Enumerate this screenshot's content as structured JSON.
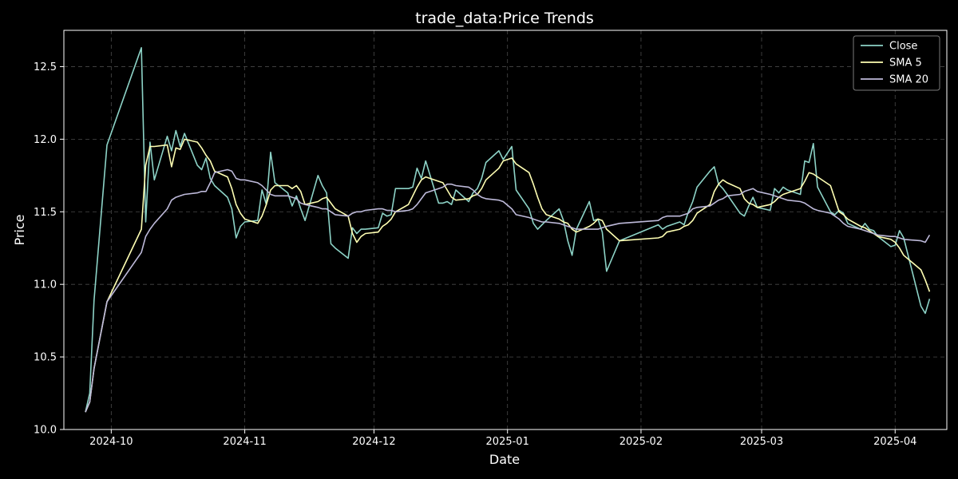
{
  "chart_data": {
    "type": "line",
    "title": "trade_data:Price Trends",
    "xlabel": "Date",
    "ylabel": "Price",
    "xlim": [
      "2024-09-20",
      "2025-04-13"
    ],
    "ylim": [
      10.0,
      12.75
    ],
    "x_ticks": [
      "2024-10",
      "2024-11",
      "2024-12",
      "2025-01",
      "2025-02",
      "2025-03",
      "2025-04"
    ],
    "y_ticks": [
      10.0,
      10.5,
      11.0,
      11.5,
      12.0,
      12.5
    ],
    "y_tick_labels": [
      "10.0",
      "10.5",
      "11.0",
      "11.5",
      "12.0",
      "12.5"
    ],
    "grid": true,
    "legend_position": "top-right",
    "background": "#000000",
    "x": [
      "2024-09-25",
      "2024-09-26",
      "2024-09-27",
      "2024-09-30",
      "2024-10-08",
      "2024-10-09",
      "2024-10-10",
      "2024-10-11",
      "2024-10-14",
      "2024-10-15",
      "2024-10-16",
      "2024-10-17",
      "2024-10-18",
      "2024-10-21",
      "2024-10-22",
      "2024-10-23",
      "2024-10-24",
      "2024-10-25",
      "2024-10-28",
      "2024-10-29",
      "2024-10-30",
      "2024-10-31",
      "2024-11-01",
      "2024-11-04",
      "2024-11-05",
      "2024-11-06",
      "2024-11-07",
      "2024-11-08",
      "2024-11-11",
      "2024-11-12",
      "2024-11-13",
      "2024-11-14",
      "2024-11-15",
      "2024-11-18",
      "2024-11-19",
      "2024-11-20",
      "2024-11-21",
      "2024-11-22",
      "2024-11-25",
      "2024-11-26",
      "2024-11-27",
      "2024-11-28",
      "2024-11-29",
      "2024-12-02",
      "2024-12-03",
      "2024-12-04",
      "2024-12-05",
      "2024-12-06",
      "2024-12-09",
      "2024-12-10",
      "2024-12-11",
      "2024-12-12",
      "2024-12-13",
      "2024-12-16",
      "2024-12-17",
      "2024-12-18",
      "2024-12-19",
      "2024-12-20",
      "2024-12-23",
      "2024-12-24",
      "2024-12-25",
      "2024-12-26",
      "2024-12-27",
      "2024-12-30",
      "2024-12-31",
      "2025-01-02",
      "2025-01-03",
      "2025-01-06",
      "2025-01-07",
      "2025-01-08",
      "2025-01-09",
      "2025-01-10",
      "2025-01-13",
      "2025-01-14",
      "2025-01-15",
      "2025-01-16",
      "2025-01-17",
      "2025-01-20",
      "2025-01-21",
      "2025-01-22",
      "2025-01-23",
      "2025-01-24",
      "2025-01-27",
      "2025-02-05",
      "2025-02-06",
      "2025-02-07",
      "2025-02-10",
      "2025-02-11",
      "2025-02-12",
      "2025-02-13",
      "2025-02-14",
      "2025-02-17",
      "2025-02-18",
      "2025-02-19",
      "2025-02-20",
      "2025-02-21",
      "2025-02-24",
      "2025-02-25",
      "2025-02-26",
      "2025-02-27",
      "2025-02-28",
      "2025-03-03",
      "2025-03-04",
      "2025-03-05",
      "2025-03-06",
      "2025-03-07",
      "2025-03-10",
      "2025-03-11",
      "2025-03-12",
      "2025-03-13",
      "2025-03-14",
      "2025-03-17",
      "2025-03-18",
      "2025-03-19",
      "2025-03-20",
      "2025-03-21",
      "2025-03-24",
      "2025-03-25",
      "2025-03-26",
      "2025-03-27",
      "2025-03-28",
      "2025-03-31",
      "2025-04-01",
      "2025-04-02",
      "2025-04-03",
      "2025-04-07",
      "2025-04-08",
      "2025-04-09"
    ],
    "series": [
      {
        "name": "Close",
        "color": "#8dd3c7",
        "values": [
          10.12,
          10.25,
          10.89,
          11.96,
          12.63,
          11.43,
          11.98,
          11.72,
          12.02,
          11.92,
          12.06,
          11.95,
          12.04,
          11.82,
          11.79,
          11.87,
          11.73,
          11.68,
          11.6,
          11.52,
          11.32,
          11.4,
          11.43,
          11.44,
          11.65,
          11.55,
          11.91,
          11.7,
          11.63,
          11.54,
          11.61,
          11.52,
          11.44,
          11.75,
          11.68,
          11.63,
          11.28,
          11.25,
          11.18,
          11.39,
          11.35,
          11.38,
          11.38,
          11.39,
          11.49,
          11.47,
          11.48,
          11.66,
          11.66,
          11.67,
          11.8,
          11.73,
          11.85,
          11.56,
          11.56,
          11.57,
          11.55,
          11.65,
          11.57,
          11.63,
          11.66,
          11.73,
          11.84,
          11.92,
          11.86,
          11.95,
          11.65,
          11.52,
          11.42,
          11.38,
          11.41,
          11.44,
          11.52,
          11.44,
          11.3,
          11.2,
          11.38,
          11.57,
          11.44,
          11.45,
          11.36,
          11.09,
          11.3,
          11.41,
          11.38,
          11.4,
          11.43,
          11.41,
          11.5,
          11.57,
          11.67,
          11.78,
          11.81,
          11.69,
          11.66,
          11.62,
          11.49,
          11.47,
          11.54,
          11.6,
          11.53,
          11.51,
          11.66,
          11.63,
          11.67,
          11.65,
          11.62,
          11.85,
          11.84,
          11.97,
          11.67,
          11.5,
          11.48,
          11.51,
          11.49,
          11.42,
          11.38,
          11.42,
          11.38,
          11.37,
          11.33,
          11.26,
          11.27,
          11.37,
          11.32,
          10.85,
          10.8,
          10.9
        ]
      },
      {
        "name": "SMA 5",
        "color": "#ffffb3",
        "values": [
          10.12,
          10.19,
          10.42,
          10.88,
          11.38,
          11.82,
          11.95,
          11.95,
          11.96,
          11.81,
          11.94,
          11.93,
          12.0,
          11.98,
          11.94,
          11.89,
          11.85,
          11.78,
          11.74,
          11.66,
          11.55,
          11.49,
          11.45,
          11.42,
          11.47,
          11.55,
          11.65,
          11.68,
          11.68,
          11.66,
          11.68,
          11.64,
          11.55,
          11.57,
          11.59,
          11.6,
          11.56,
          11.52,
          11.47,
          11.35,
          11.29,
          11.33,
          11.35,
          11.36,
          11.4,
          11.42,
          11.45,
          11.5,
          11.55,
          11.61,
          11.67,
          11.72,
          11.74,
          11.71,
          11.7,
          11.65,
          11.6,
          11.58,
          11.59,
          11.61,
          11.62,
          11.66,
          11.72,
          11.8,
          11.85,
          11.87,
          11.83,
          11.77,
          11.69,
          11.6,
          11.52,
          11.48,
          11.45,
          11.43,
          11.42,
          11.38,
          11.36,
          11.4,
          11.42,
          11.45,
          11.44,
          11.38,
          11.3,
          11.32,
          11.33,
          11.36,
          11.38,
          11.4,
          11.41,
          11.44,
          11.49,
          11.55,
          11.64,
          11.69,
          11.72,
          11.7,
          11.66,
          11.59,
          11.56,
          11.55,
          11.53,
          11.55,
          11.57,
          11.6,
          11.62,
          11.63,
          11.66,
          11.71,
          11.77,
          11.76,
          11.74,
          11.68,
          11.59,
          11.5,
          11.48,
          11.45,
          11.4,
          11.39,
          11.37,
          11.35,
          11.33,
          11.31,
          11.29,
          11.25,
          11.2,
          11.1,
          11.03,
          10.95
        ]
      },
      {
        "name": "SMA 20",
        "color": "#bebada",
        "values": [
          10.12,
          10.19,
          10.42,
          10.88,
          11.22,
          11.33,
          11.38,
          11.42,
          11.52,
          11.58,
          11.6,
          11.61,
          11.62,
          11.63,
          11.64,
          11.64,
          11.7,
          11.77,
          11.79,
          11.78,
          11.73,
          11.72,
          11.72,
          11.7,
          11.68,
          11.65,
          11.62,
          11.61,
          11.61,
          11.6,
          11.59,
          11.56,
          11.55,
          11.53,
          11.52,
          11.52,
          11.5,
          11.48,
          11.47,
          11.49,
          11.5,
          11.5,
          11.51,
          11.52,
          11.52,
          11.51,
          11.51,
          11.5,
          11.51,
          11.52,
          11.55,
          11.59,
          11.63,
          11.66,
          11.67,
          11.69,
          11.69,
          11.68,
          11.67,
          11.65,
          11.62,
          11.6,
          11.59,
          11.58,
          11.57,
          11.52,
          11.48,
          11.46,
          11.45,
          11.44,
          11.43,
          11.43,
          11.42,
          11.41,
          11.4,
          11.39,
          11.38,
          11.38,
          11.38,
          11.38,
          11.39,
          11.4,
          11.42,
          11.44,
          11.46,
          11.47,
          11.47,
          11.48,
          11.49,
          11.52,
          11.53,
          11.54,
          11.56,
          11.58,
          11.59,
          11.61,
          11.62,
          11.64,
          11.65,
          11.66,
          11.64,
          11.62,
          11.61,
          11.6,
          11.59,
          11.58,
          11.57,
          11.56,
          11.54,
          11.52,
          11.51,
          11.49,
          11.47,
          11.45,
          11.42,
          11.4,
          11.38,
          11.37,
          11.36,
          11.35,
          11.34,
          11.33,
          11.33,
          11.32,
          11.31,
          11.3,
          11.29,
          11.34
        ]
      }
    ]
  }
}
